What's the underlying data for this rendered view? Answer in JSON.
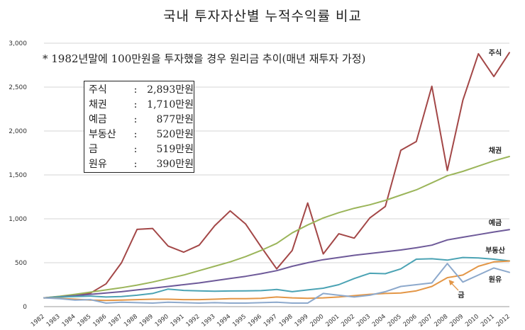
{
  "chart_data": {
    "type": "line",
    "title": "국내 투자자산별 누적수익률 비교",
    "note": "* 1982년말에 100만원을 투자했을 경우 원리금 추이(매년 재투자 가정)",
    "x": [
      "1982",
      "1983",
      "1984",
      "1985",
      "1986",
      "1987",
      "1988",
      "1989",
      "1990",
      "1991",
      "1992",
      "1993",
      "1994",
      "1995",
      "1996",
      "1997",
      "1998",
      "1999",
      "2000",
      "2001",
      "2002",
      "2003",
      "2004",
      "2005",
      "2006",
      "2007",
      "2008",
      "2009",
      "2010",
      "2011",
      "2012"
    ],
    "ylim": [
      0,
      3000
    ],
    "yticks": [
      0,
      500,
      1000,
      1500,
      2000,
      2500,
      3000
    ],
    "ytick_labels": [
      "0",
      "500",
      "1,000",
      "1,500",
      "2,000",
      "2,500",
      "3,000"
    ],
    "grid": "horizontal",
    "series": [
      {
        "name": "주식",
        "color": "#a34747",
        "values": [
          100,
          115,
          130,
          155,
          260,
          500,
          880,
          890,
          690,
          620,
          700,
          920,
          1090,
          940,
          680,
          430,
          640,
          1180,
          600,
          830,
          780,
          1010,
          1140,
          1780,
          1880,
          2510,
          1550,
          2350,
          2880,
          2620,
          2893
        ]
      },
      {
        "name": "채권",
        "color": "#9bb55a",
        "values": [
          100,
          118,
          140,
          165,
          190,
          215,
          245,
          280,
          320,
          360,
          410,
          460,
          510,
          570,
          640,
          720,
          840,
          930,
          1010,
          1070,
          1120,
          1160,
          1210,
          1270,
          1330,
          1410,
          1490,
          1540,
          1600,
          1660,
          1710
        ]
      },
      {
        "name": "예금",
        "color": "#6e5a99",
        "values": [
          100,
          112,
          125,
          140,
          155,
          170,
          190,
          210,
          230,
          250,
          270,
          295,
          320,
          345,
          375,
          410,
          460,
          500,
          535,
          560,
          585,
          605,
          625,
          645,
          670,
          700,
          760,
          790,
          820,
          850,
          877
        ]
      },
      {
        "name": "부동산",
        "color": "#4ba3b4",
        "values": [
          100,
          110,
          115,
          120,
          110,
          115,
          130,
          150,
          200,
          185,
          180,
          175,
          178,
          180,
          182,
          195,
          170,
          190,
          210,
          250,
          320,
          380,
          375,
          430,
          540,
          545,
          530,
          560,
          555,
          540,
          520
        ]
      },
      {
        "name": "금",
        "color": "#e39646",
        "values": [
          100,
          95,
          85,
          75,
          70,
          75,
          80,
          85,
          85,
          80,
          80,
          85,
          90,
          90,
          95,
          110,
          100,
          95,
          100,
          110,
          125,
          140,
          150,
          155,
          180,
          230,
          330,
          360,
          460,
          510,
          519
        ]
      },
      {
        "name": "원유",
        "color": "#8da9cc",
        "values": [
          100,
          90,
          75,
          80,
          40,
          50,
          45,
          40,
          50,
          45,
          40,
          45,
          40,
          40,
          45,
          50,
          40,
          40,
          150,
          130,
          110,
          130,
          170,
          230,
          250,
          270,
          490,
          280,
          360,
          440,
          390
        ]
      }
    ],
    "series_label_positions": "right end of each line",
    "summary_box": [
      {
        "label": "주식",
        "value": "2,893만원"
      },
      {
        "label": "채권",
        "value": "1,710만원"
      },
      {
        "label": "예금",
        "value": "877만원"
      },
      {
        "label": "부동산",
        "value": "520만원"
      },
      {
        "label": "금",
        "value": "519만원"
      },
      {
        "label": "원유",
        "value": "390만원"
      }
    ]
  }
}
